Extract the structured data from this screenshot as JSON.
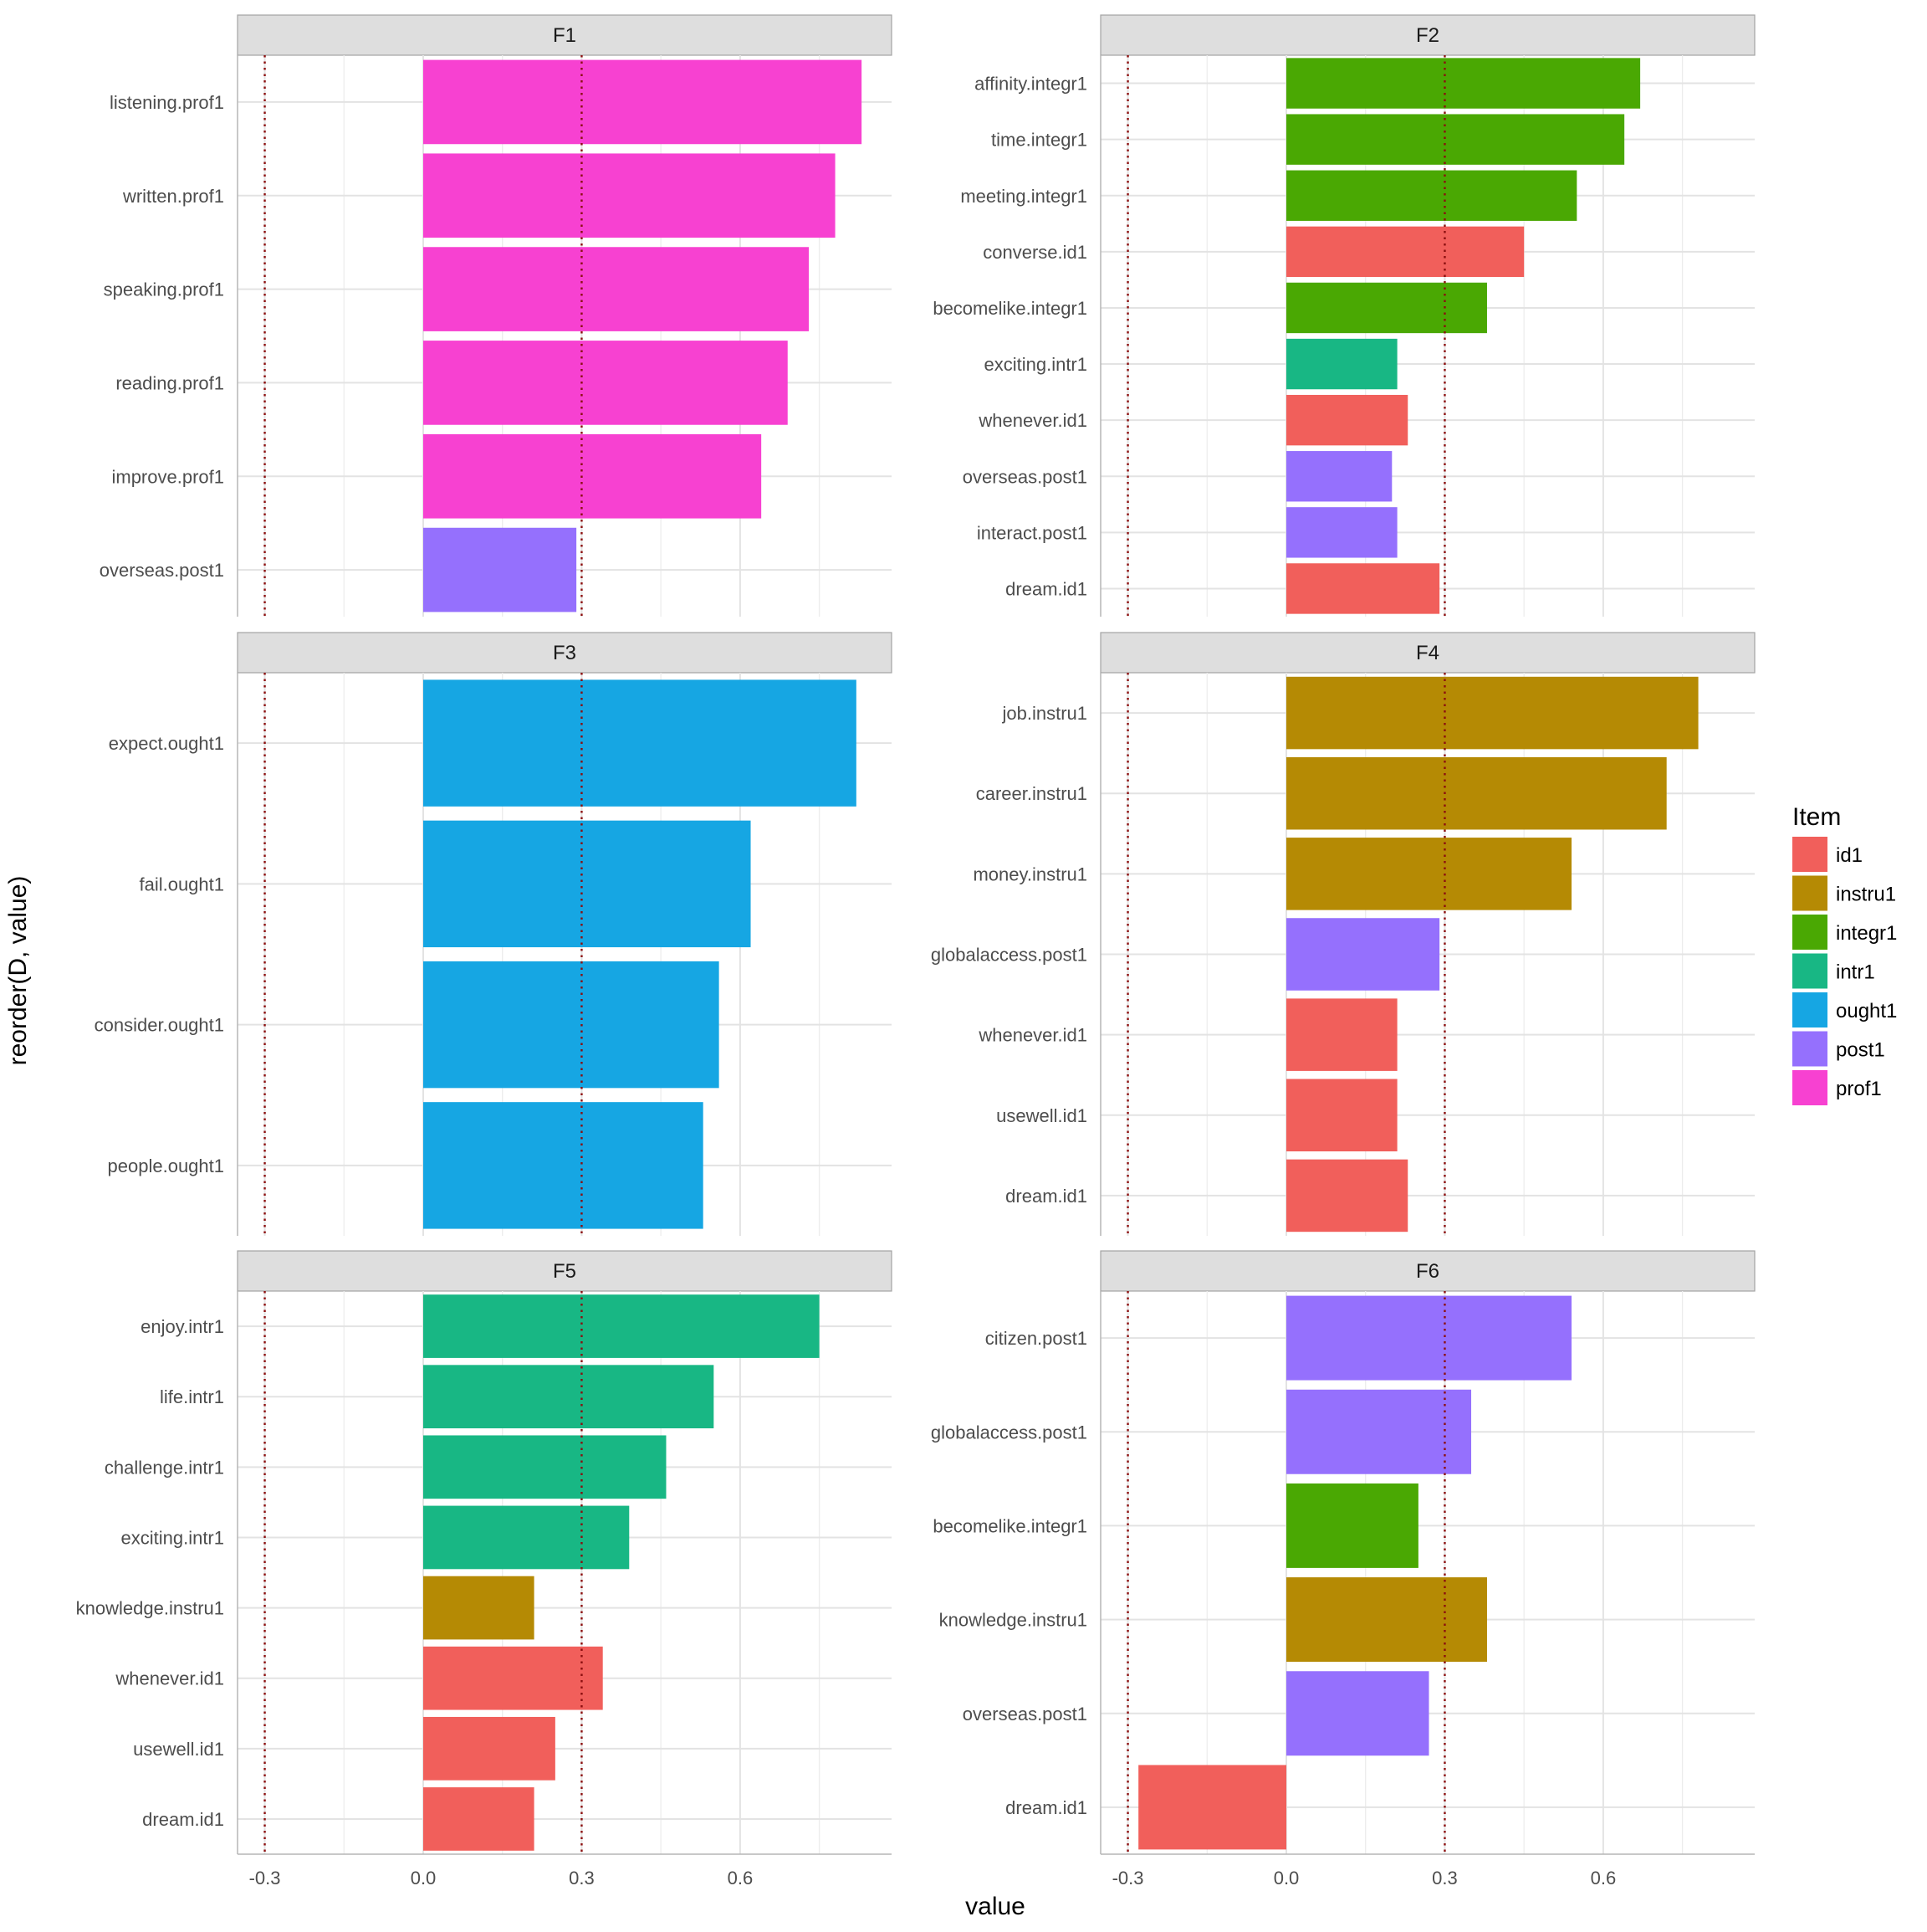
{
  "chart_data": {
    "type": "bar",
    "orientation": "horizontal",
    "facet_wrap": true,
    "xlabel": "value",
    "ylabel": "reorder(D, value)",
    "xlim": [
      -0.35,
      0.89
    ],
    "xticks": [
      -0.3,
      0.0,
      0.3,
      0.6
    ],
    "xtick_labels": [
      "-0.3",
      "0.0",
      "0.3",
      "0.6"
    ],
    "reference_lines": [
      -0.3,
      0.3
    ],
    "grid": true,
    "legend": {
      "title": "Item",
      "placement": "right",
      "entries": [
        {
          "label": "id1",
          "color": "#F15F5B"
        },
        {
          "label": "instru1",
          "color": "#B58A04"
        },
        {
          "label": "integr1",
          "color": "#4AA803"
        },
        {
          "label": "intr1",
          "color": "#18B784"
        },
        {
          "label": "ought1",
          "color": "#16A6E3"
        },
        {
          "label": "post1",
          "color": "#9570FD"
        },
        {
          "label": "prof1",
          "color": "#F741D1"
        }
      ]
    },
    "panels": [
      {
        "title": "F1",
        "bars": [
          {
            "label": "listening.prof1",
            "item": "prof1",
            "value": 0.83
          },
          {
            "label": "written.prof1",
            "item": "prof1",
            "value": 0.78
          },
          {
            "label": "speaking.prof1",
            "item": "prof1",
            "value": 0.73
          },
          {
            "label": "reading.prof1",
            "item": "prof1",
            "value": 0.69
          },
          {
            "label": "improve.prof1",
            "item": "prof1",
            "value": 0.64
          },
          {
            "label": "overseas.post1",
            "item": "post1",
            "value": 0.29
          }
        ]
      },
      {
        "title": "F2",
        "bars": [
          {
            "label": "affinity.integr1",
            "item": "integr1",
            "value": 0.67
          },
          {
            "label": "time.integr1",
            "item": "integr1",
            "value": 0.64
          },
          {
            "label": "meeting.integr1",
            "item": "integr1",
            "value": 0.55
          },
          {
            "label": "converse.id1",
            "item": "id1",
            "value": 0.45
          },
          {
            "label": "becomelike.integr1",
            "item": "integr1",
            "value": 0.38
          },
          {
            "label": "exciting.intr1",
            "item": "intr1",
            "value": 0.21
          },
          {
            "label": "whenever.id1",
            "item": "id1",
            "value": 0.23
          },
          {
            "label": "overseas.post1",
            "item": "post1",
            "value": 0.2
          },
          {
            "label": "interact.post1",
            "item": "post1",
            "value": 0.21
          },
          {
            "label": "dream.id1",
            "item": "id1",
            "value": 0.29
          }
        ]
      },
      {
        "title": "F3",
        "bars": [
          {
            "label": "expect.ought1",
            "item": "ought1",
            "value": 0.82
          },
          {
            "label": "fail.ought1",
            "item": "ought1",
            "value": 0.62
          },
          {
            "label": "consider.ought1",
            "item": "ought1",
            "value": 0.56
          },
          {
            "label": "people.ought1",
            "item": "ought1",
            "value": 0.53
          }
        ]
      },
      {
        "title": "F4",
        "bars": [
          {
            "label": "job.instru1",
            "item": "instru1",
            "value": 0.78
          },
          {
            "label": "career.instru1",
            "item": "instru1",
            "value": 0.72
          },
          {
            "label": "money.instru1",
            "item": "instru1",
            "value": 0.54
          },
          {
            "label": "globalaccess.post1",
            "item": "post1",
            "value": 0.29
          },
          {
            "label": "whenever.id1",
            "item": "id1",
            "value": 0.21
          },
          {
            "label": "usewell.id1",
            "item": "id1",
            "value": 0.21
          },
          {
            "label": "dream.id1",
            "item": "id1",
            "value": 0.23
          }
        ]
      },
      {
        "title": "F5",
        "bars": [
          {
            "label": "enjoy.intr1",
            "item": "intr1",
            "value": 0.75
          },
          {
            "label": "life.intr1",
            "item": "intr1",
            "value": 0.55
          },
          {
            "label": "challenge.intr1",
            "item": "intr1",
            "value": 0.46
          },
          {
            "label": "exciting.intr1",
            "item": "intr1",
            "value": 0.39
          },
          {
            "label": "knowledge.instru1",
            "item": "instru1",
            "value": 0.21
          },
          {
            "label": "whenever.id1",
            "item": "id1",
            "value": 0.34
          },
          {
            "label": "usewell.id1",
            "item": "id1",
            "value": 0.25
          },
          {
            "label": "dream.id1",
            "item": "id1",
            "value": 0.21
          }
        ]
      },
      {
        "title": "F6",
        "bars": [
          {
            "label": "citizen.post1",
            "item": "post1",
            "value": 0.54
          },
          {
            "label": "globalaccess.post1",
            "item": "post1",
            "value": 0.35
          },
          {
            "label": "becomelike.integr1",
            "item": "integr1",
            "value": 0.25
          },
          {
            "label": "knowledge.instru1",
            "item": "instru1",
            "value": 0.38
          },
          {
            "label": "overseas.post1",
            "item": "post1",
            "value": 0.27
          },
          {
            "label": "dream.id1",
            "item": "id1",
            "value": -0.28
          }
        ]
      }
    ]
  }
}
